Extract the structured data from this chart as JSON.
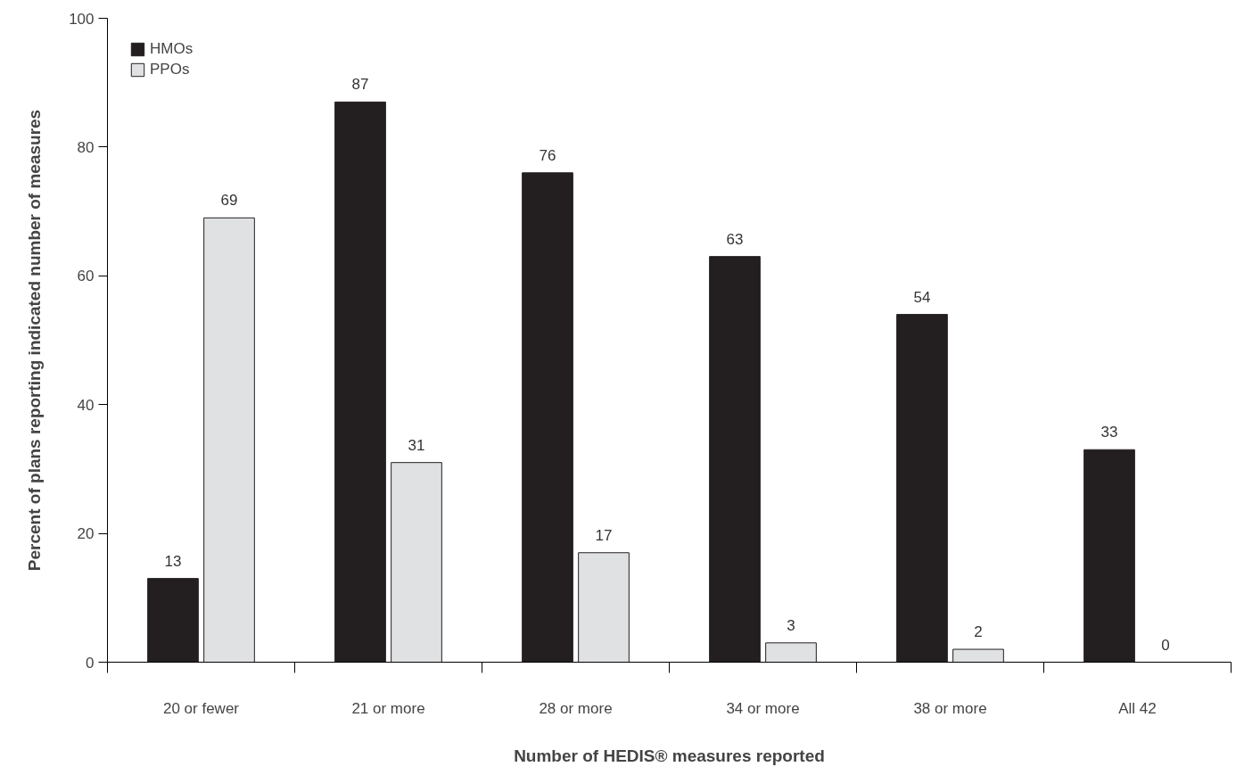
{
  "chart_data": {
    "type": "bar",
    "xlabel": "Number of HEDIS® measures reported",
    "ylabel": "Percent of plans reporting indicated number of measures",
    "categories": [
      "20 or fewer",
      "21 or more",
      "28 or more",
      "34 or more",
      "38 or more",
      "All 42"
    ],
    "series": [
      {
        "name": "HMOs",
        "color": "#231f20",
        "values": [
          13,
          87,
          76,
          63,
          54,
          33
        ]
      },
      {
        "name": "PPOs",
        "color": "#e0e1e3",
        "values": [
          69,
          31,
          17,
          3,
          2,
          0
        ]
      }
    ],
    "ylim": [
      0,
      100
    ],
    "yticks": [
      0,
      20,
      40,
      60,
      80,
      100
    ],
    "grid": false,
    "legend": "top left",
    "data_labels": true
  }
}
